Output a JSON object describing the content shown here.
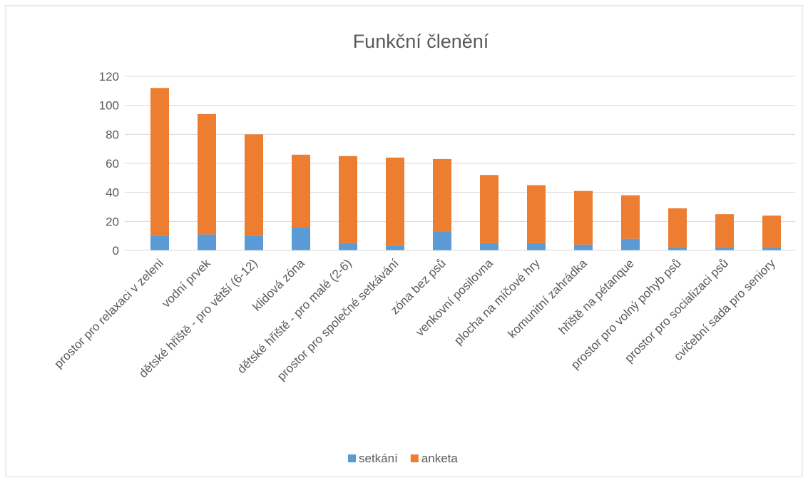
{
  "chart_data": {
    "type": "stacked_bar",
    "title": "Funkční členění",
    "categories": [
      "prostor pro relaxaci v zeleni",
      "vodní prvek",
      "dětské hřiště - pro větší (6-12)",
      "klidová zóna",
      "dětské hřiště - pro malé (2-6)",
      "prostor pro společné setkávání",
      "zóna bez psů",
      "venkovní posilovna",
      "plocha na míčové hry",
      "komunitní zahrádka",
      "hřiště na pétanque",
      "prostor pro volný pohyb psů",
      "prostor pro socializaci psů",
      "cvičební sada pro seniory"
    ],
    "series": [
      {
        "name": "setkání",
        "color": "#5b9bd5",
        "values": [
          10,
          11,
          10,
          16,
          5,
          3,
          13,
          5,
          5,
          4,
          8,
          2,
          2,
          2
        ]
      },
      {
        "name": "anketa",
        "color": "#ed7d31",
        "values": [
          102,
          83,
          70,
          50,
          60,
          61,
          50,
          47,
          40,
          37,
          30,
          27,
          23,
          22
        ]
      }
    ],
    "ylim": [
      0,
      120
    ],
    "yticks": [
      0,
      20,
      40,
      60,
      80,
      100,
      120
    ],
    "grid": true,
    "legend": "bottom"
  }
}
